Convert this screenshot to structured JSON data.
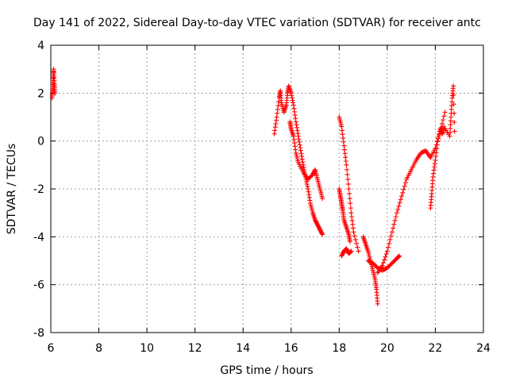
{
  "chart_data": {
    "type": "scatter",
    "title": "Day 141 of 2022, Sidereal Day-to-day VTEC variation (SDTVAR) for receiver antc",
    "xlabel": "GPS time / hours",
    "ylabel": "SDTVAR / TECUs",
    "xlim": [
      6,
      24
    ],
    "ylim": [
      -8,
      4
    ],
    "xticks": [
      "6",
      "8",
      "10",
      "12",
      "14",
      "16",
      "18",
      "20",
      "22",
      "24"
    ],
    "yticks": [
      "4",
      "2",
      "0",
      "-2",
      "-4",
      "-6",
      "-8"
    ],
    "grid": true,
    "marker": "+",
    "color": "#ff0000",
    "series": [
      {
        "name": "SDTVAR",
        "x": [
          6.05,
          6.08,
          6.1,
          6.12,
          6.15,
          6.18,
          15.3,
          15.4,
          15.5,
          15.55,
          15.6,
          15.7,
          15.8,
          15.85,
          15.9,
          16.0,
          16.1,
          16.2,
          16.3,
          16.4,
          16.5,
          16.6,
          16.7,
          16.8,
          16.9,
          17.0,
          17.1,
          17.2,
          17.3,
          15.95,
          16.0,
          16.1,
          16.2,
          16.3,
          16.5,
          16.7,
          16.9,
          17.0,
          17.1,
          17.2,
          17.3,
          18.0,
          18.05,
          18.1,
          18.15,
          18.2,
          18.3,
          18.4,
          18.45,
          18.0,
          18.1,
          18.2,
          18.3,
          18.4,
          18.5,
          18.6,
          18.8,
          18.1,
          18.2,
          18.3,
          18.4,
          18.5,
          19.0,
          19.1,
          19.2,
          19.3,
          19.4,
          19.5,
          19.55,
          19.6,
          19.2,
          19.4,
          19.6,
          19.8,
          20.0,
          20.2,
          20.4,
          20.5,
          19.6,
          19.8,
          20.0,
          20.2,
          20.4,
          20.6,
          20.8,
          21.0,
          21.2,
          21.4,
          21.6,
          21.8,
          22.0,
          22.2,
          22.4,
          21.8,
          21.85,
          21.9,
          22.0,
          22.1,
          22.2,
          22.3,
          22.35,
          22.6,
          22.65,
          22.7,
          22.75,
          22.8
        ],
        "y": [
          1.8,
          2.2,
          2.6,
          3.0,
          2.4,
          2.0,
          0.3,
          1.0,
          1.8,
          2.1,
          1.6,
          1.2,
          1.5,
          2.0,
          2.3,
          2.0,
          1.5,
          0.8,
          0.2,
          -0.4,
          -1.0,
          -1.5,
          -2.0,
          -2.6,
          -3.0,
          -3.3,
          -3.5,
          -3.7,
          -3.9,
          0.8,
          0.5,
          0.2,
          -0.5,
          -0.9,
          -1.3,
          -1.6,
          -1.4,
          -1.2,
          -1.6,
          -2.0,
          -2.4,
          -2.0,
          -2.3,
          -2.6,
          -2.9,
          -3.3,
          -3.6,
          -3.9,
          -4.2,
          1.0,
          0.6,
          -0.2,
          -1.0,
          -2.0,
          -3.0,
          -3.8,
          -4.6,
          -4.8,
          -4.6,
          -4.5,
          -4.7,
          -4.6,
          -4.0,
          -4.3,
          -4.6,
          -5.0,
          -5.4,
          -5.8,
          -6.2,
          -6.8,
          -5.0,
          -5.1,
          -5.3,
          -5.4,
          -5.3,
          -5.1,
          -4.9,
          -4.8,
          -5.5,
          -5.2,
          -4.6,
          -3.8,
          -3.0,
          -2.3,
          -1.6,
          -1.2,
          -0.8,
          -0.5,
          -0.4,
          -0.7,
          -0.3,
          0.4,
          1.2,
          -2.8,
          -2.2,
          -1.5,
          -0.8,
          0.0,
          0.5,
          0.3,
          0.6,
          0.2,
          1.0,
          1.8,
          2.3,
          0.4
        ]
      }
    ]
  }
}
